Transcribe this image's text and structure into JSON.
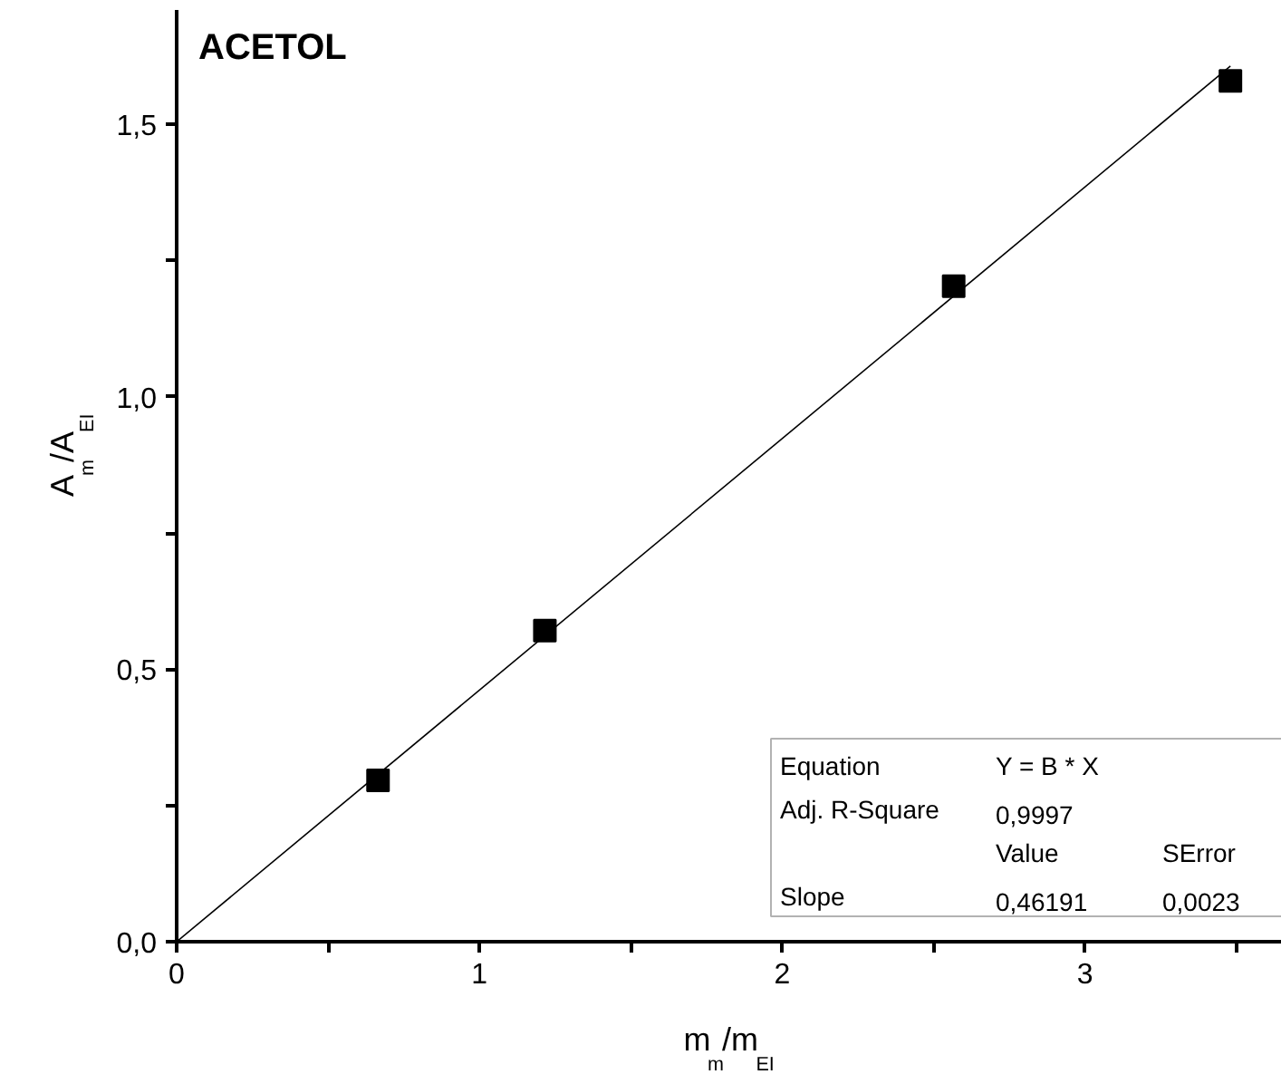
{
  "chart_data": {
    "type": "scatter",
    "title": "ACETOL",
    "xlabel": "m$_{m}$/m$_{EI}$",
    "ylabel": "A$_{m}$/A$_{EI}$",
    "series": [
      {
        "type": "scatter",
        "color": "#000000",
        "marker": "square",
        "x": [
          0.665,
          1.216,
          2.566,
          3.48
        ],
        "values": [
          0.296,
          0.571,
          1.203,
          1.58
        ]
      },
      {
        "type": "line",
        "color": "#000000",
        "marker": "none",
        "line_style": "solid",
        "x": [
          0,
          3.48
        ],
        "values": [
          0,
          1.607
        ]
      }
    ],
    "xlim": [
      0,
      3.65
    ],
    "ylim": [
      0,
      1.71
    ],
    "xticks": [
      0,
      {
        "value": 0.5,
        "label": null
      },
      1,
      {
        "value": 1.5,
        "label": null
      },
      2,
      {
        "value": 2.5,
        "label": null
      },
      3,
      {
        "value": 3.5,
        "label": null
      }
    ],
    "yticks": [
      {
        "value": 0,
        "label": "0,0"
      },
      {
        "value": 0.25,
        "label": null
      },
      {
        "value": 0.5,
        "label": "0,5"
      },
      {
        "value": 0.75,
        "label": null
      },
      {
        "value": 1.0,
        "label": "1,0"
      },
      {
        "value": 1.25,
        "label": null
      },
      {
        "value": 1.5,
        "label": "1,5"
      }
    ],
    "annotations": [
      "Equation",
      "Y = B * X",
      "Adj. R-Square",
      "0,9997",
      "Value",
      "SError",
      "Slope",
      "0,46191",
      "0,0023"
    ]
  }
}
